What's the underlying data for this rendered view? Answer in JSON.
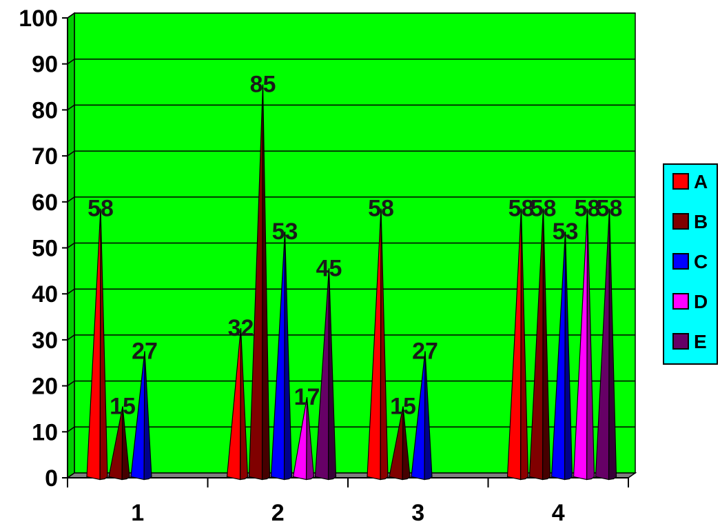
{
  "chart_data": {
    "type": "bar",
    "bar_shape": "3d-cone",
    "categories": [
      "1",
      "2",
      "3",
      "4"
    ],
    "series": [
      {
        "name": "A",
        "color": "#ff0000",
        "values": [
          58,
          32,
          58,
          58
        ]
      },
      {
        "name": "B",
        "color": "#800000",
        "values": [
          15,
          85,
          15,
          58
        ]
      },
      {
        "name": "C",
        "color": "#0000ff",
        "values": [
          27,
          53,
          27,
          53
        ]
      },
      {
        "name": "D",
        "color": "#ff00ff",
        "values": [
          null,
          17,
          null,
          58
        ]
      },
      {
        "name": "E",
        "color": "#660066",
        "values": [
          null,
          45,
          null,
          58
        ]
      }
    ],
    "ylim": [
      0,
      100
    ],
    "yticks": [
      "0",
      "10",
      "20",
      "30",
      "40",
      "50",
      "60",
      "70",
      "80",
      "90",
      "100"
    ],
    "grid": true,
    "data_labels": true,
    "legend_position": "right",
    "plot_background": "#00ff00",
    "legend_background": "#00ffff",
    "floor_color": "#808080"
  }
}
